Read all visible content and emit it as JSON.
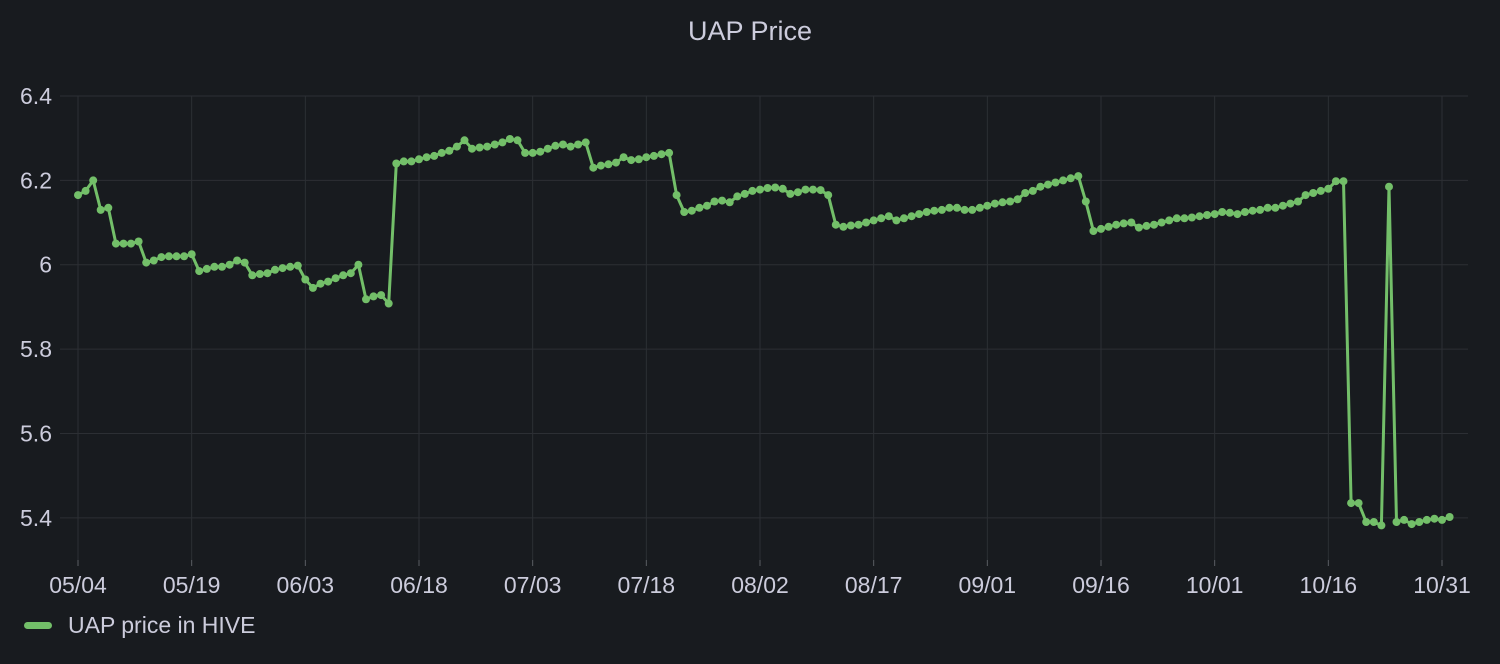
{
  "panel": {
    "title": "UAP Price"
  },
  "colors": {
    "background": "#181b1f",
    "series": "#73bf69",
    "grid": "#2c2f34",
    "text": "#ccccdc"
  },
  "legend": {
    "label": "UAP price in HIVE",
    "placement": "bottom-left"
  },
  "chart_data": {
    "type": "line",
    "title": "UAP Price",
    "xlabel": "",
    "ylabel": "",
    "ylim": [
      5.3,
      6.4
    ],
    "xlim": [
      "05/04",
      "11/02"
    ],
    "x_tick_labels": [
      "05/04",
      "05/19",
      "06/03",
      "06/18",
      "07/03",
      "07/18",
      "08/02",
      "08/17",
      "09/01",
      "09/16",
      "10/01",
      "10/16",
      "10/31"
    ],
    "y_tick_labels": [
      "5.4",
      "5.6",
      "5.8",
      "6",
      "6.2",
      "6.4"
    ],
    "y_tick_values": [
      5.4,
      5.6,
      5.8,
      6.0,
      6.2,
      6.4
    ],
    "grid": true,
    "series": [
      {
        "name": "UAP price in HIVE",
        "points": [
          [
            "05/04",
            6.165
          ],
          [
            "05/05",
            6.175
          ],
          [
            "05/06",
            6.2
          ],
          [
            "05/07",
            6.13
          ],
          [
            "05/08",
            6.135
          ],
          [
            "05/09",
            6.05
          ],
          [
            "05/10",
            6.05
          ],
          [
            "05/11",
            6.05
          ],
          [
            "05/12",
            6.055
          ],
          [
            "05/13",
            6.005
          ],
          [
            "05/14",
            6.01
          ],
          [
            "05/15",
            6.018
          ],
          [
            "05/16",
            6.02
          ],
          [
            "05/17",
            6.02
          ],
          [
            "05/18",
            6.02
          ],
          [
            "05/19",
            6.025
          ],
          [
            "05/20",
            5.985
          ],
          [
            "05/21",
            5.99
          ],
          [
            "05/22",
            5.995
          ],
          [
            "05/23",
            5.995
          ],
          [
            "05/24",
            6.0
          ],
          [
            "05/25",
            6.01
          ],
          [
            "05/26",
            6.005
          ],
          [
            "05/27",
            5.975
          ],
          [
            "05/28",
            5.978
          ],
          [
            "05/29",
            5.98
          ],
          [
            "05/30",
            5.988
          ],
          [
            "05/31",
            5.992
          ],
          [
            "06/01",
            5.995
          ],
          [
            "06/02",
            5.998
          ],
          [
            "06/03",
            5.965
          ],
          [
            "06/04",
            5.945
          ],
          [
            "06/05",
            5.955
          ],
          [
            "06/06",
            5.96
          ],
          [
            "06/07",
            5.968
          ],
          [
            "06/08",
            5.975
          ],
          [
            "06/09",
            5.98
          ],
          [
            "06/10",
            6.0
          ],
          [
            "06/11",
            5.918
          ],
          [
            "06/12",
            5.925
          ],
          [
            "06/13",
            5.928
          ],
          [
            "06/14",
            5.908
          ],
          [
            "06/15",
            6.24
          ],
          [
            "06/16",
            6.245
          ],
          [
            "06/17",
            6.245
          ],
          [
            "06/18",
            6.25
          ],
          [
            "06/19",
            6.255
          ],
          [
            "06/20",
            6.258
          ],
          [
            "06/21",
            6.265
          ],
          [
            "06/22",
            6.27
          ],
          [
            "06/23",
            6.28
          ],
          [
            "06/24",
            6.295
          ],
          [
            "06/25",
            6.275
          ],
          [
            "06/26",
            6.278
          ],
          [
            "06/27",
            6.28
          ],
          [
            "06/28",
            6.285
          ],
          [
            "06/29",
            6.29
          ],
          [
            "06/30",
            6.298
          ],
          [
            "07/01",
            6.295
          ],
          [
            "07/02",
            6.265
          ],
          [
            "07/03",
            6.265
          ],
          [
            "07/04",
            6.268
          ],
          [
            "07/05",
            6.275
          ],
          [
            "07/06",
            6.282
          ],
          [
            "07/07",
            6.285
          ],
          [
            "07/08",
            6.28
          ],
          [
            "07/09",
            6.285
          ],
          [
            "07/10",
            6.29
          ],
          [
            "07/11",
            6.23
          ],
          [
            "07/12",
            6.235
          ],
          [
            "07/13",
            6.238
          ],
          [
            "07/14",
            6.242
          ],
          [
            "07/15",
            6.255
          ],
          [
            "07/16",
            6.248
          ],
          [
            "07/17",
            6.25
          ],
          [
            "07/18",
            6.255
          ],
          [
            "07/19",
            6.258
          ],
          [
            "07/20",
            6.262
          ],
          [
            "07/21",
            6.265
          ],
          [
            "07/22",
            6.165
          ],
          [
            "07/23",
            6.125
          ],
          [
            "07/24",
            6.128
          ],
          [
            "07/25",
            6.135
          ],
          [
            "07/26",
            6.14
          ],
          [
            "07/27",
            6.15
          ],
          [
            "07/28",
            6.152
          ],
          [
            "07/29",
            6.148
          ],
          [
            "07/30",
            6.162
          ],
          [
            "07/31",
            6.168
          ],
          [
            "08/01",
            6.175
          ],
          [
            "08/02",
            6.178
          ],
          [
            "08/03",
            6.182
          ],
          [
            "08/04",
            6.183
          ],
          [
            "08/05",
            6.18
          ],
          [
            "08/06",
            6.168
          ],
          [
            "08/07",
            6.172
          ],
          [
            "08/08",
            6.178
          ],
          [
            "08/09",
            6.178
          ],
          [
            "08/10",
            6.177
          ],
          [
            "08/11",
            6.165
          ],
          [
            "08/12",
            6.095
          ],
          [
            "08/13",
            6.09
          ],
          [
            "08/14",
            6.093
          ],
          [
            "08/15",
            6.095
          ],
          [
            "08/16",
            6.1
          ],
          [
            "08/17",
            6.105
          ],
          [
            "08/18",
            6.11
          ],
          [
            "08/19",
            6.115
          ],
          [
            "08/20",
            6.105
          ],
          [
            "08/21",
            6.11
          ],
          [
            "08/22",
            6.115
          ],
          [
            "08/23",
            6.12
          ],
          [
            "08/24",
            6.125
          ],
          [
            "08/25",
            6.128
          ],
          [
            "08/26",
            6.13
          ],
          [
            "08/27",
            6.135
          ],
          [
            "08/28",
            6.135
          ],
          [
            "08/29",
            6.13
          ],
          [
            "08/30",
            6.13
          ],
          [
            "08/31",
            6.135
          ],
          [
            "09/01",
            6.14
          ],
          [
            "09/02",
            6.145
          ],
          [
            "09/03",
            6.148
          ],
          [
            "09/04",
            6.15
          ],
          [
            "09/05",
            6.155
          ],
          [
            "09/06",
            6.17
          ],
          [
            "09/07",
            6.175
          ],
          [
            "09/08",
            6.185
          ],
          [
            "09/09",
            6.19
          ],
          [
            "09/10",
            6.195
          ],
          [
            "09/11",
            6.2
          ],
          [
            "09/12",
            6.205
          ],
          [
            "09/13",
            6.21
          ],
          [
            "09/14",
            6.15
          ],
          [
            "09/15",
            6.08
          ],
          [
            "09/16",
            6.085
          ],
          [
            "09/17",
            6.09
          ],
          [
            "09/18",
            6.095
          ],
          [
            "09/19",
            6.098
          ],
          [
            "09/20",
            6.1
          ],
          [
            "09/21",
            6.088
          ],
          [
            "09/22",
            6.092
          ],
          [
            "09/23",
            6.095
          ],
          [
            "09/24",
            6.1
          ],
          [
            "09/25",
            6.105
          ],
          [
            "09/26",
            6.11
          ],
          [
            "09/27",
            6.11
          ],
          [
            "09/28",
            6.112
          ],
          [
            "09/29",
            6.115
          ],
          [
            "09/30",
            6.118
          ],
          [
            "10/01",
            6.12
          ],
          [
            "10/02",
            6.125
          ],
          [
            "10/03",
            6.123
          ],
          [
            "10/04",
            6.12
          ],
          [
            "10/05",
            6.125
          ],
          [
            "10/06",
            6.128
          ],
          [
            "10/07",
            6.13
          ],
          [
            "10/08",
            6.135
          ],
          [
            "10/09",
            6.135
          ],
          [
            "10/10",
            6.14
          ],
          [
            "10/11",
            6.145
          ],
          [
            "10/12",
            6.15
          ],
          [
            "10/13",
            6.165
          ],
          [
            "10/14",
            6.17
          ],
          [
            "10/15",
            6.175
          ],
          [
            "10/16",
            6.18
          ],
          [
            "10/17",
            6.198
          ],
          [
            "10/18",
            6.198
          ],
          [
            "10/19",
            5.435
          ],
          [
            "10/20",
            5.435
          ],
          [
            "10/21",
            5.39
          ],
          [
            "10/22",
            5.39
          ],
          [
            "10/23",
            5.382
          ],
          [
            "10/24",
            6.185
          ],
          [
            "10/25",
            5.39
          ],
          [
            "10/26",
            5.395
          ],
          [
            "10/27",
            5.385
          ],
          [
            "10/28",
            5.39
          ],
          [
            "10/29",
            5.395
          ],
          [
            "10/30",
            5.398
          ],
          [
            "10/31",
            5.395
          ],
          [
            "11/01",
            5.402
          ]
        ]
      }
    ]
  }
}
